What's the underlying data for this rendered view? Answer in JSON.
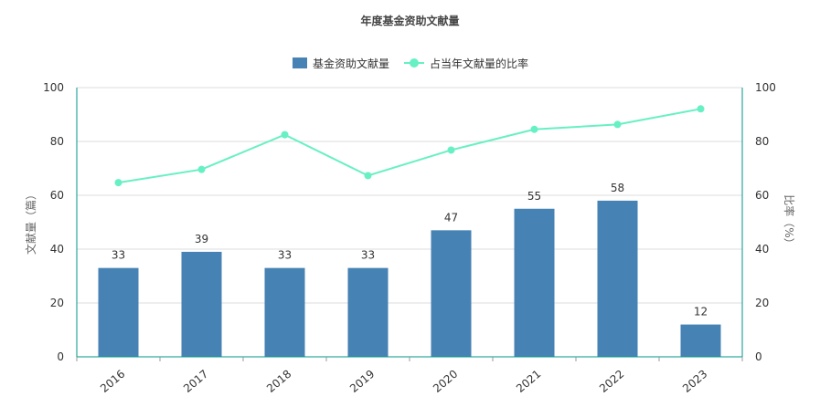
{
  "chart_data": {
    "type": "bar",
    "title": "年度基金资助文献量",
    "categories": [
      "2016",
      "2017",
      "2018",
      "2019",
      "2020",
      "2021",
      "2022",
      "2023"
    ],
    "series": [
      {
        "name": "基金资助文献量",
        "type": "bar",
        "axis": "left",
        "values": [
          33,
          39,
          33,
          33,
          47,
          55,
          58,
          12
        ]
      },
      {
        "name": "占当年文献量的比率",
        "type": "line",
        "axis": "right",
        "values": [
          64.7,
          69.6,
          82.5,
          67.3,
          76.8,
          84.5,
          86.3,
          92.1
        ]
      }
    ],
    "ylabel": "文献量（篇）",
    "y2label": "比率（%）",
    "ylim": [
      0,
      100
    ],
    "y2lim": [
      0,
      100
    ],
    "yticks": [
      0,
      20,
      40,
      60,
      80,
      100
    ],
    "y2ticks": [
      0,
      20,
      40,
      60,
      80,
      100
    ],
    "grid": true,
    "legend_position": "top-center",
    "colors": {
      "bar": "#4682b4",
      "line": "#67f0c4",
      "axis": "#009688",
      "grid": "#dddddd"
    }
  }
}
